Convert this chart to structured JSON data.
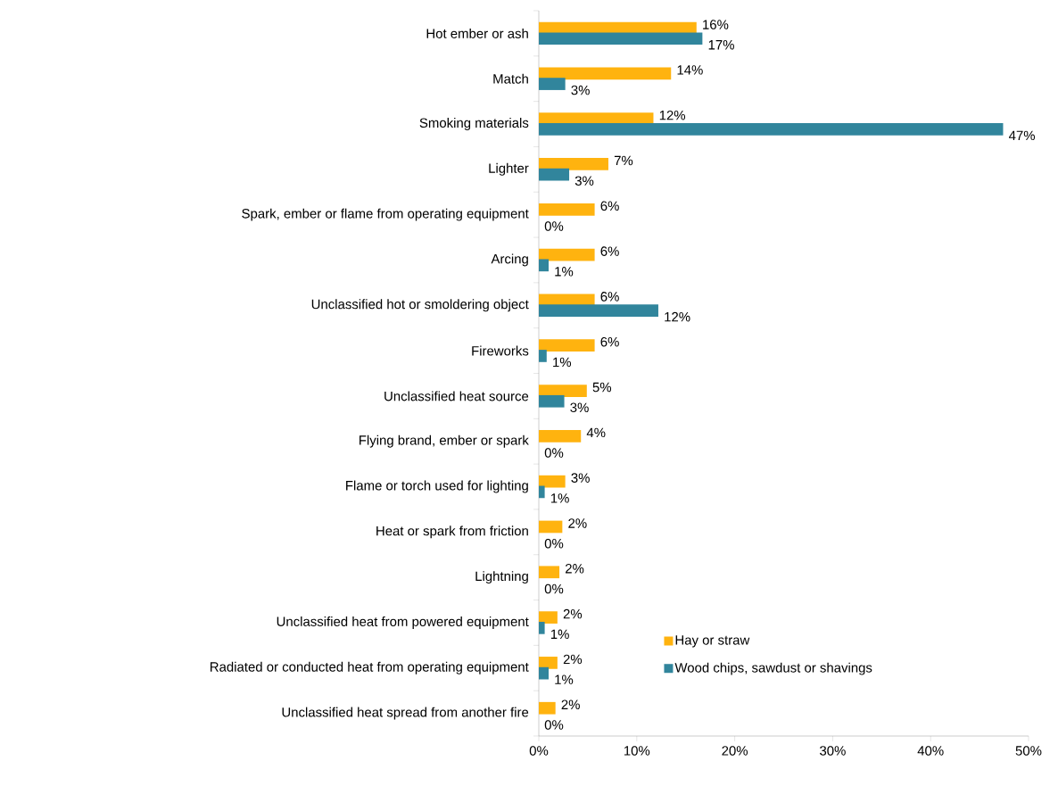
{
  "chart_data": {
    "type": "bar",
    "orientation": "horizontal",
    "categories": [
      "Hot ember or ash",
      "Match",
      "Smoking materials",
      "Lighter",
      "Spark, ember or flame from operating equipment",
      "Arcing",
      "Unclassified hot or smoldering object",
      "Fireworks",
      "Unclassified heat source",
      "Flying brand, ember or spark",
      "Flame or torch used for lighting",
      "Heat or spark from friction",
      "Lightning",
      "Unclassified heat from powered equipment",
      "Radiated or conducted heat from operating equipment",
      "Unclassified heat spread from another fire"
    ],
    "series": [
      {
        "name": "Hay or straw",
        "color": "#ffb30f",
        "values": [
          16.1,
          13.5,
          11.7,
          7.1,
          5.7,
          5.7,
          5.7,
          5.7,
          4.9,
          4.3,
          2.7,
          2.4,
          2.1,
          1.9,
          1.9,
          1.7
        ],
        "value_labels": [
          "16%",
          "14%",
          "12%",
          "7%",
          "6%",
          "6%",
          "6%",
          "6%",
          "5%",
          "4%",
          "3%",
          "2%",
          "2%",
          "2%",
          "2%",
          "2%"
        ]
      },
      {
        "name": "Wood chips, sawdust or shavings",
        "color": "#31859c",
        "values": [
          16.7,
          2.7,
          47.4,
          3.1,
          0,
          1.0,
          12.2,
          0.8,
          2.6,
          0,
          0.6,
          0,
          0,
          0.6,
          1.0,
          0
        ],
        "value_labels": [
          "17%",
          "3%",
          "47%",
          "3%",
          "0%",
          "1%",
          "12%",
          "1%",
          "3%",
          "0%",
          "1%",
          "0%",
          "0%",
          "1%",
          "1%",
          "0%"
        ]
      }
    ],
    "xlim": [
      0,
      50
    ],
    "xticks": [
      {
        "value": 0,
        "label": "0%"
      },
      {
        "value": 10,
        "label": "10%"
      },
      {
        "value": 20,
        "label": "20%"
      },
      {
        "value": 30,
        "label": "30%"
      },
      {
        "value": 40,
        "label": "40%"
      },
      {
        "value": 50,
        "label": "50%"
      }
    ],
    "legend": "bottom right",
    "grid": false
  }
}
